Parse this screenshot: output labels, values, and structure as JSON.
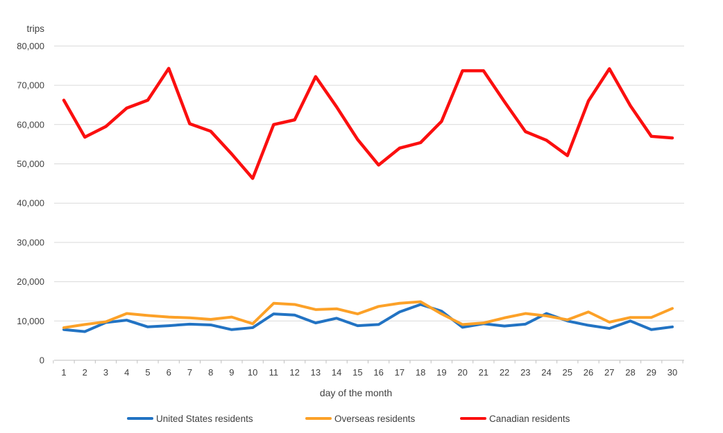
{
  "chart_data": {
    "type": "line",
    "title": "",
    "ylabel": "trips",
    "xlabel": "day of the month",
    "x": [
      1,
      2,
      3,
      4,
      5,
      6,
      7,
      8,
      9,
      10,
      11,
      12,
      13,
      14,
      15,
      16,
      17,
      18,
      19,
      20,
      21,
      22,
      23,
      24,
      25,
      26,
      27,
      28,
      29,
      30
    ],
    "series": [
      {
        "name": "United States residents",
        "color": "#2273C3",
        "values": [
          7800,
          7300,
          9600,
          10200,
          8500,
          8800,
          9200,
          9000,
          7800,
          8300,
          11800,
          11500,
          9500,
          10700,
          8800,
          9100,
          12300,
          14200,
          12500,
          8400,
          9300,
          8700,
          9200,
          11900,
          10000,
          8900,
          8100,
          10000,
          7800,
          8500
        ]
      },
      {
        "name": "Overseas residents",
        "color": "#FCA128",
        "values": [
          8300,
          9100,
          9800,
          11900,
          11400,
          11000,
          10800,
          10400,
          11000,
          9300,
          14500,
          14200,
          12900,
          13100,
          11800,
          13700,
          14500,
          14900,
          11800,
          9100,
          9500,
          10800,
          11900,
          11300,
          10300,
          12300,
          9700,
          10900,
          10900,
          13200
        ]
      },
      {
        "name": "Canadian residents",
        "color": "#FB0F0F",
        "values": [
          66200,
          56800,
          59500,
          64200,
          66200,
          74300,
          60200,
          58300,
          52500,
          46300,
          60000,
          61200,
          72200,
          64500,
          56200,
          49700,
          54000,
          55400,
          60800,
          73700,
          73700,
          65800,
          58200,
          56000,
          52100,
          66000,
          74200,
          64800,
          57000,
          56600
        ]
      }
    ],
    "ylim": [
      0,
      80000
    ],
    "ytick_step": 10000,
    "ytick_labels": [
      "0",
      "10,000",
      "20,000",
      "30,000",
      "40,000",
      "50,000",
      "60,000",
      "70,000",
      "80,000"
    ],
    "grid": true,
    "legend_position": "bottom"
  },
  "colors": {
    "gridline": "#D9D9D9",
    "axis": "#BFBFBF",
    "text": "#404040",
    "background": "#FFFFFF"
  }
}
